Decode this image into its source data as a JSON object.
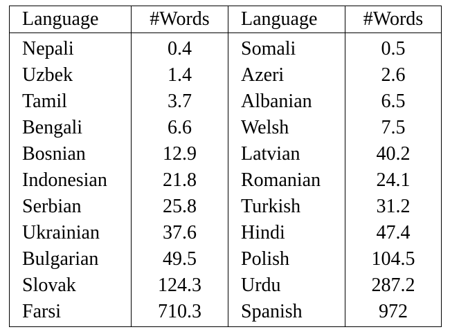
{
  "table": {
    "headers": [
      "Language",
      "#Words",
      "Language",
      "#Words"
    ],
    "rows": [
      [
        "Nepali",
        "0.4",
        "Somali",
        "0.5"
      ],
      [
        "Uzbek",
        "1.4",
        "Azeri",
        "2.6"
      ],
      [
        "Tamil",
        "3.7",
        "Albanian",
        "6.5"
      ],
      [
        "Bengali",
        "6.6",
        "Welsh",
        "7.5"
      ],
      [
        "Bosnian",
        "12.9",
        "Latvian",
        "40.2"
      ],
      [
        "Indonesian",
        "21.8",
        "Romanian",
        "24.1"
      ],
      [
        "Serbian",
        "25.8",
        "Turkish",
        "31.2"
      ],
      [
        "Ukrainian",
        "37.6",
        "Hindi",
        "47.4"
      ],
      [
        "Bulgarian",
        "49.5",
        "Polish",
        "104.5"
      ],
      [
        "Slovak",
        "124.3",
        "Urdu",
        "287.2"
      ],
      [
        "Farsi",
        "710.3",
        "Spanish",
        "972"
      ]
    ]
  }
}
